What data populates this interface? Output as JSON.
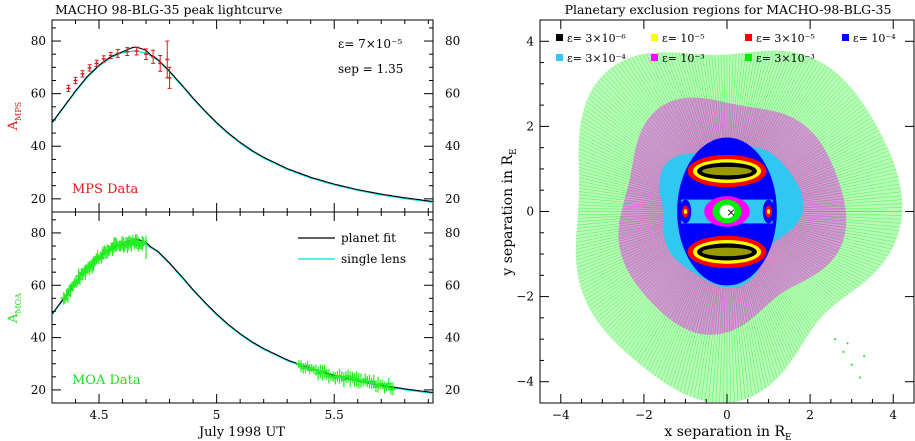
{
  "chart_data": [
    {
      "type": "line",
      "title": "MACHO 98-BLG-35 peak lightcurve",
      "panels": [
        {
          "name": "MPS",
          "ylabel": "A_MPS",
          "ylabel_main": "A",
          "ylabel_sub": "MPS",
          "ylabel_color": "#e01818",
          "ylim": [
            15,
            88
          ],
          "yticks": [
            20,
            40,
            60,
            80
          ],
          "data_label": "MPS Data",
          "data_color": "#e01818",
          "annotation_eps": "ε= 7×10⁻⁵",
          "annotation_sep": "sep = 1.35",
          "points": [
            {
              "x": 4.37,
              "y": 62.0,
              "err": 1.2
            },
            {
              "x": 4.4,
              "y": 65.0,
              "err": 1.2
            },
            {
              "x": 4.43,
              "y": 67.5,
              "err": 1.2
            },
            {
              "x": 4.46,
              "y": 69.8,
              "err": 1.2
            },
            {
              "x": 4.49,
              "y": 71.5,
              "err": 1.2
            },
            {
              "x": 4.52,
              "y": 73.2,
              "err": 1.2
            },
            {
              "x": 4.55,
              "y": 74.5,
              "err": 1.2
            },
            {
              "x": 4.58,
              "y": 75.3,
              "err": 1.5
            },
            {
              "x": 4.62,
              "y": 76.0,
              "err": 1.5
            },
            {
              "x": 4.66,
              "y": 76.2,
              "err": 1.5
            },
            {
              "x": 4.7,
              "y": 75.0,
              "err": 2.0
            },
            {
              "x": 4.73,
              "y": 74.0,
              "err": 2.5
            },
            {
              "x": 4.76,
              "y": 71.5,
              "err": 3.0
            },
            {
              "x": 4.79,
              "y": 73.0,
              "err": 7.0
            },
            {
              "x": 4.8,
              "y": 66.0,
              "err": 4.0
            }
          ]
        },
        {
          "name": "MOA",
          "ylabel": "A_MOA",
          "ylabel_main": "A",
          "ylabel_sub": "MOA",
          "ylabel_color": "#22dd22",
          "ylim": [
            15,
            88
          ],
          "yticks": [
            20,
            40,
            60,
            80
          ],
          "data_label": "MOA Data",
          "data_color": "#22ee22",
          "legend": [
            {
              "label": "planet fit",
              "color": "#000000"
            },
            {
              "label": "single lens",
              "color": "#00e0e0"
            }
          ],
          "points_ranges": [
            {
              "x_start": 4.35,
              "x_end": 4.69,
              "n": 60
            },
            {
              "x_start": 5.35,
              "x_end": 5.75,
              "n": 45
            }
          ]
        }
      ],
      "xlabel": "July 1998 UT",
      "xlim": [
        4.3,
        5.92
      ],
      "xticks": [
        4.5,
        5.0,
        5.5
      ],
      "xtick_labels": [
        "4.5",
        "5",
        "5.5"
      ],
      "model": {
        "peak_time": 4.665,
        "peak_value": 76.5,
        "curve_samples": [
          [
            4.3,
            49.0
          ],
          [
            4.35,
            55.0
          ],
          [
            4.4,
            61.0
          ],
          [
            4.45,
            66.5
          ],
          [
            4.5,
            70.8
          ],
          [
            4.55,
            74.0
          ],
          [
            4.6,
            75.9
          ],
          [
            4.65,
            76.5
          ],
          [
            4.7,
            75.8
          ],
          [
            4.75,
            73.0
          ],
          [
            4.8,
            68.5
          ],
          [
            4.85,
            63.5
          ],
          [
            4.9,
            58.3
          ],
          [
            4.95,
            53.5
          ],
          [
            5.0,
            49.0
          ],
          [
            5.05,
            45.0
          ],
          [
            5.1,
            41.5
          ],
          [
            5.15,
            38.4
          ],
          [
            5.2,
            35.8
          ],
          [
            5.3,
            31.5
          ],
          [
            5.4,
            28.2
          ],
          [
            5.5,
            25.6
          ],
          [
            5.6,
            23.5
          ],
          [
            5.7,
            21.8
          ],
          [
            5.8,
            20.4
          ],
          [
            5.92,
            19.0
          ]
        ]
      }
    },
    {
      "type": "scatter",
      "title": "Planetary exclusion regions for MACHO-98-BLG-35",
      "xlabel_main": "x separation in R",
      "xlabel_sub": "E",
      "ylabel_main": "y separation in R",
      "ylabel_sub": "E",
      "xlim": [
        -4.5,
        4.5
      ],
      "ylim": [
        -4.5,
        4.5
      ],
      "xticks": [
        -4,
        -2,
        0,
        2,
        4
      ],
      "yticks": [
        -4,
        -2,
        0,
        2,
        4
      ],
      "legend": [
        {
          "label": "ε= 3×10⁻⁶",
          "color": "#000000"
        },
        {
          "label": "ε= 10⁻⁵",
          "color": "#ffff00"
        },
        {
          "label": "ε= 3×10⁻⁵",
          "color": "#ff0000"
        },
        {
          "label": "ε= 10⁻⁴",
          "color": "#0000ff"
        },
        {
          "label": "ε= 3×10⁻⁴",
          "color": "#30c8f0"
        },
        {
          "label": "ε= 10⁻³",
          "color": "#ff00ff"
        },
        {
          "label": "ε= 3×10⁻³",
          "color": "#00ee00"
        }
      ],
      "regions": [
        {
          "epsilon": "3×10⁻³",
          "color": "#00ee00",
          "radius": 3.9
        },
        {
          "epsilon": "10⁻³",
          "color": "#ff00ff",
          "radius": 2.7
        },
        {
          "epsilon": "3×10⁻⁴",
          "color": "#30c8f0",
          "radius": 1.6
        },
        {
          "epsilon": "10⁻⁴",
          "color": "#0000ff",
          "radius": 1.2
        },
        {
          "epsilon": "3×10⁻⁵",
          "color": "#ff0000",
          "radius": 1.05
        },
        {
          "epsilon": "10⁻⁵",
          "color": "#ffff00",
          "radius": 0.95
        },
        {
          "epsilon": "3×10⁻⁶",
          "color": "#000000",
          "radius": 0.9
        }
      ],
      "center_marker": "×"
    }
  ]
}
